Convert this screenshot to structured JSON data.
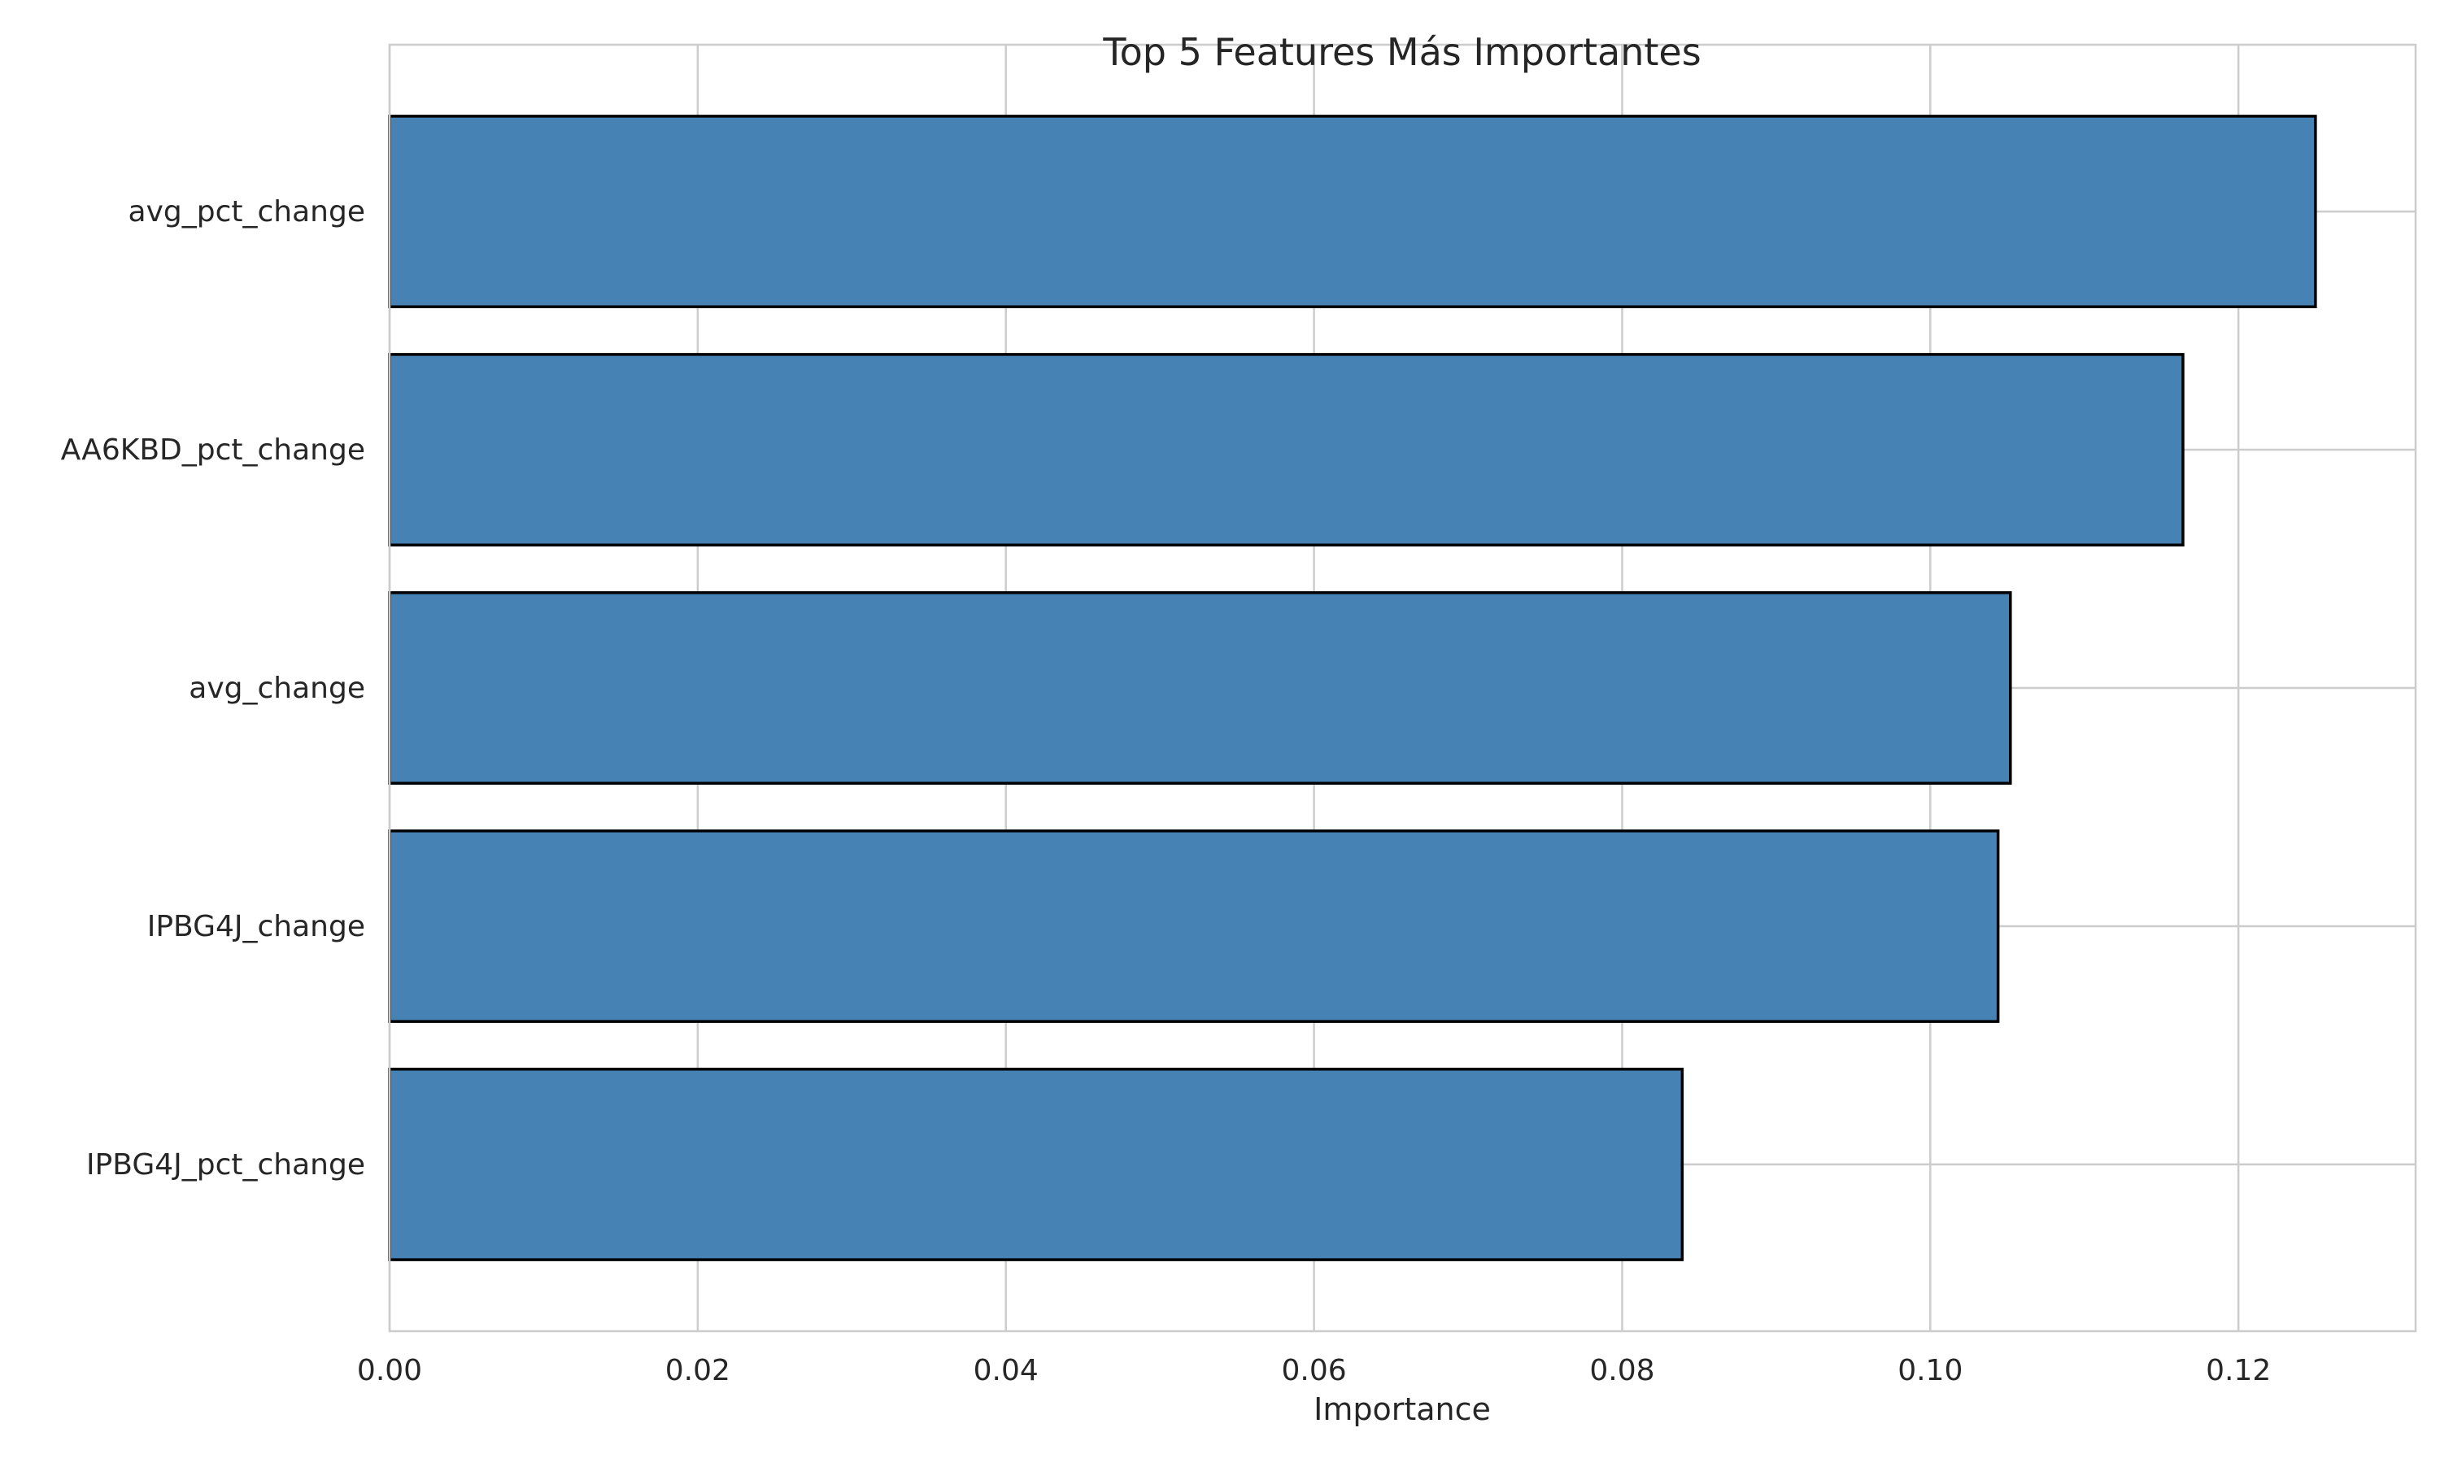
{
  "chart_data": {
    "type": "bar",
    "orientation": "horizontal",
    "title": "Top 5 Features Más Importantes",
    "xlabel": "Importance",
    "ylabel": "",
    "categories": [
      "avg_pct_change",
      "AA6KBD_pct_change",
      "avg_change",
      "IPBG4J_change",
      "IPBG4J_pct_change"
    ],
    "values": [
      0.125,
      0.1164,
      0.1052,
      0.1044,
      0.0839
    ],
    "xlim": [
      0,
      0.1315
    ],
    "x_ticks": [
      0.0,
      0.02,
      0.04,
      0.06,
      0.08,
      0.1,
      0.12
    ],
    "x_tick_labels": [
      "0.00",
      "0.02",
      "0.04",
      "0.06",
      "0.08",
      "0.10",
      "0.12"
    ],
    "grid": true,
    "legend": "none",
    "colors": {
      "bar_fill": "#4682b4",
      "bar_edge": "#000000",
      "grid": "#cccccc",
      "frame": "#cccccc",
      "text": "#262626",
      "background": "#ffffff"
    }
  }
}
